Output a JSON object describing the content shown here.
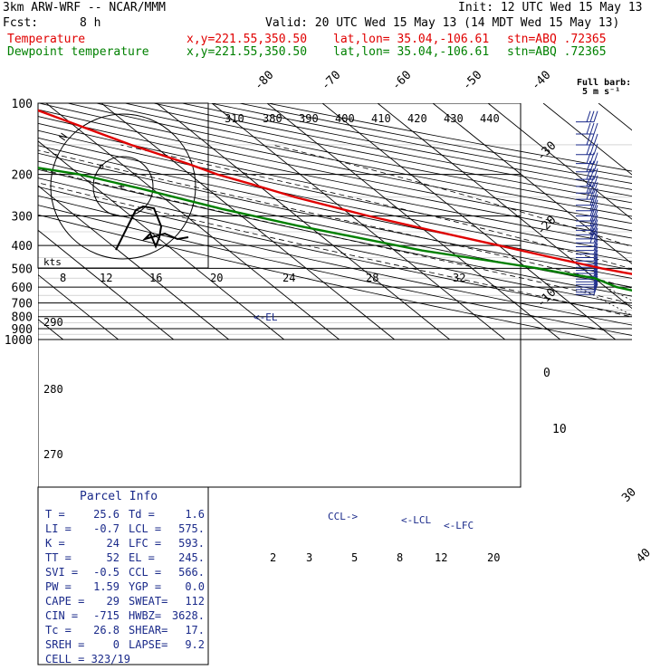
{
  "header": {
    "model": "3km ARW-WRF -- NCAR/MMM",
    "init": "Init: 12 UTC Wed 15 May 13",
    "fcst_label": "Fcst:",
    "fcst_value": "8 h",
    "valid": "Valid: 20 UTC Wed 15 May 13 (14 MDT Wed 15 May 13)",
    "temp_label": "Temperature",
    "dew_label": "Dewpoint temperature",
    "xy": "x,y=221.55,350.50",
    "latlon": "lat,lon= 35.04,-106.61",
    "stn": "stn=ABQ .72365"
  },
  "colors": {
    "temperature": "#e00000",
    "dewpoint": "#008000",
    "wind": "#1a2a8a",
    "grid": "#000000"
  },
  "chart_data": {
    "type": "line",
    "pressure_levels": [
      "100",
      "200",
      "300",
      "400",
      "500",
      "600",
      "700",
      "800",
      "900",
      "1000"
    ],
    "isotherms": [
      "-80",
      "-70",
      "-60",
      "-50",
      "-40",
      "-30",
      "-20",
      "-10",
      "0",
      "10",
      "30",
      "40"
    ],
    "theta_labels": [
      "310",
      "380",
      "390",
      "400",
      "410",
      "420",
      "430",
      "440"
    ],
    "hodograph": {
      "units": "kts",
      "ticks": [
        "8",
        "12",
        "16",
        "20",
        "24",
        "28",
        "32"
      ],
      "ring_label": "N"
    },
    "wet_bulb_labels": [
      "290",
      "280",
      "270"
    ],
    "mixing_ratio_labels": [
      "2",
      "3",
      "5",
      "8",
      "12",
      "20"
    ],
    "series": [
      {
        "name": "Temperature",
        "p": [
          100,
          150,
          180,
          200,
          220,
          250,
          300,
          350,
          400,
          450,
          500,
          520,
          550,
          600,
          650,
          700,
          750,
          800,
          830
        ],
        "t": [
          -75,
          -64,
          -58,
          -55,
          -51,
          -46,
          -37,
          -28,
          -20,
          -13,
          -6.5,
          -3.5,
          1,
          7,
          12.5,
          17,
          21.5,
          25,
          25.6
        ]
      },
      {
        "name": "Dewpoint temperature",
        "p": [
          100,
          150,
          170,
          180,
          200,
          230,
          280,
          330,
          380,
          420,
          460,
          500,
          520,
          550,
          600,
          650,
          700,
          750,
          800,
          830
        ],
        "t": [
          -100,
          -91,
          -88,
          -90,
          -80,
          -72,
          -62,
          -52,
          -42,
          -35,
          -26,
          -18,
          -15,
          -10,
          -8,
          -3,
          -1.5,
          1,
          2,
          1.6
        ]
      }
    ],
    "annotations": [
      "<-EL",
      "CCL->",
      "<-LCL",
      "<-LFC"
    ]
  },
  "parcel": {
    "title": "Parcel Info",
    "rows": [
      [
        "T  =",
        "25.6",
        "Td =",
        "1.6"
      ],
      [
        "LI =",
        "-0.7",
        "LCL =",
        "575."
      ],
      [
        "K  =",
        "24",
        "LFC =",
        "593."
      ],
      [
        "TT =",
        "52",
        "EL =",
        "245."
      ],
      [
        "SVI =",
        "-0.5",
        "CCL =",
        "566."
      ],
      [
        "PW =",
        "1.59",
        "YGP =",
        "0.0"
      ],
      [
        "CAPE =",
        "29",
        "SWEAT=",
        "112"
      ],
      [
        "CIN =",
        "-715",
        "HWBZ=",
        "3628."
      ],
      [
        "Tc =",
        "26.8",
        "SHEAR=",
        "17."
      ],
      [
        "SREH =",
        "0",
        "LAPSE=",
        "9.2"
      ]
    ],
    "cell": "CELL = 323/19"
  },
  "barb_legend": {
    "title": "Full barb:",
    "value": "5 m s⁻¹"
  }
}
